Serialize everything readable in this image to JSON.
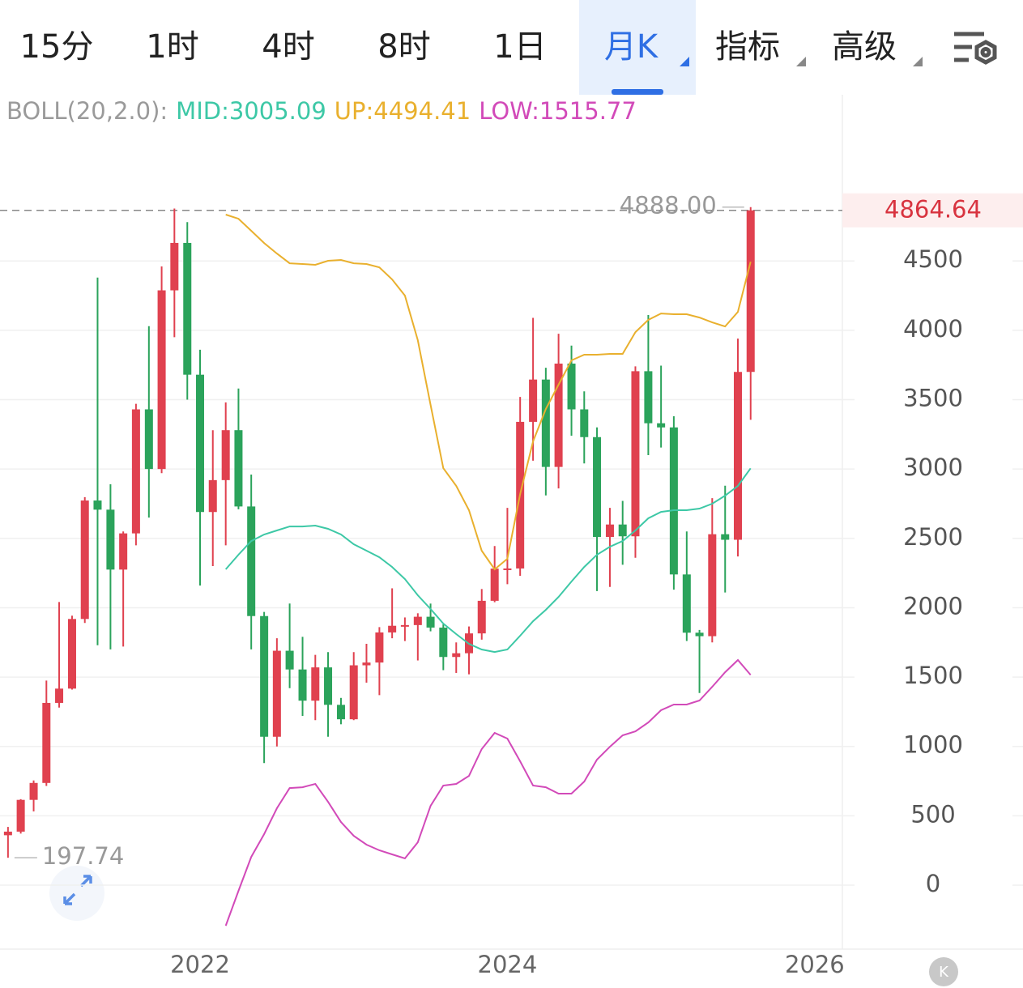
{
  "tabs": {
    "items": [
      "15分",
      "1时",
      "4时",
      "8时",
      "1日",
      "月K",
      "指标",
      "高级"
    ],
    "selected": 5
  },
  "chart_data": {
    "type": "candlestick",
    "indicator_label": "BOLL(20,2.0):",
    "up_color": "#e0414f",
    "down_color": "#2ba35b",
    "x": [
      2020.75,
      2020.833,
      2020.917,
      2021,
      2021.083,
      2021.167,
      2021.25,
      2021.333,
      2021.417,
      2021.5,
      2021.583,
      2021.667,
      2021.75,
      2021.833,
      2021.917,
      2022,
      2022.083,
      2022.167,
      2022.25,
      2022.333,
      2022.417,
      2022.5,
      2022.583,
      2022.667,
      2022.75,
      2022.833,
      2022.917,
      2023,
      2023.083,
      2023.167,
      2023.25,
      2023.333,
      2023.417,
      2023.5,
      2023.583,
      2023.667,
      2023.75,
      2023.833,
      2023.917,
      2024,
      2024.083,
      2024.167,
      2024.25,
      2024.333,
      2024.417,
      2024.5,
      2024.583,
      2024.667,
      2024.75,
      2024.833,
      2024.917,
      2025,
      2025.083,
      2025.167,
      2025.25,
      2025.333,
      2025.417,
      2025.5,
      2025.583
    ],
    "open": [
      360,
      386,
      615,
      737,
      1314,
      1417,
      1919,
      2773,
      2707,
      2275,
      2536,
      3430,
      3000,
      4288,
      4630,
      3680,
      2690,
      2920,
      3280,
      2730,
      1940,
      1070,
      1690,
      1555,
      1330,
      1570,
      1300,
      1196,
      1585,
      1605,
      1822,
      1870,
      1875,
      1935,
      1857,
      1645,
      1672,
      1815,
      2050,
      2282,
      2283,
      3340,
      3645,
      3015,
      3760,
      3430,
      3230,
      2510,
      2600,
      2515,
      3705,
      3330,
      3300,
      2240,
      1820,
      1795,
      2530,
      2490,
      3700
    ],
    "high": [
      420,
      620,
      755,
      1475,
      2041,
      1943,
      2797,
      4380,
      2890,
      2550,
      3470,
      4030,
      4460,
      4878,
      4780,
      3860,
      3280,
      3480,
      3580,
      2960,
      1970,
      1780,
      2030,
      1790,
      1660,
      1680,
      1350,
      1680,
      1740,
      1860,
      2140,
      1930,
      1960,
      2030,
      1880,
      1750,
      1865,
      2135,
      2445,
      2720,
      3520,
      4090,
      3730,
      3975,
      3890,
      3560,
      3300,
      2720,
      2770,
      3740,
      4110,
      3745,
      3380,
      2550,
      1840,
      2790,
      2880,
      3940,
      4888
    ],
    "low": [
      197.74,
      372,
      532,
      715,
      1280,
      1410,
      1890,
      1730,
      1700,
      1720,
      2450,
      2650,
      2970,
      3950,
      3500,
      2160,
      2300,
      2450,
      2710,
      1700,
      880,
      1000,
      1420,
      1220,
      1190,
      1070,
      1160,
      1190,
      1460,
      1370,
      1780,
      1760,
      1620,
      1830,
      1550,
      1530,
      1520,
      1770,
      2040,
      2170,
      2230,
      3060,
      2810,
      2860,
      3240,
      3040,
      2120,
      2150,
      2310,
      2360,
      3100,
      3155,
      2130,
      1760,
      1385,
      1750,
      2110,
      2370,
      3355
    ],
    "close": [
      386,
      615,
      737,
      1314,
      1417,
      1919,
      2773,
      2707,
      2275,
      2536,
      3430,
      3000,
      4288,
      4630,
      3680,
      2690,
      2920,
      3280,
      2730,
      1940,
      1070,
      1690,
      1555,
      1330,
      1570,
      1300,
      1196,
      1585,
      1605,
      1822,
      1870,
      1875,
      1935,
      1857,
      1645,
      1672,
      1815,
      2050,
      2282,
      2283,
      3340,
      3645,
      3015,
      3760,
      3430,
      3230,
      2510,
      2600,
      2515,
      3705,
      3330,
      3300,
      2240,
      1820,
      1795,
      2530,
      2490,
      3700,
      4864.64
    ],
    "series": [
      {
        "name": "MID:3005.09",
        "color": "#3dc8a6",
        "values": [
          null,
          null,
          null,
          null,
          null,
          null,
          null,
          null,
          null,
          null,
          null,
          null,
          null,
          null,
          null,
          null,
          null,
          2277,
          2382,
          2481,
          2528,
          2557,
          2586,
          2586,
          2592,
          2569,
          2528,
          2458,
          2411,
          2364,
          2294,
          2207,
          2090,
          1991,
          1886,
          1810,
          1740,
          1699,
          1681,
          1699,
          1798,
          1903,
          1985,
          2078,
          2189,
          2294,
          2382,
          2440,
          2481,
          2557,
          2645,
          2691,
          2703,
          2703,
          2715,
          2750,
          2808,
          2878,
          3005.09
        ]
      },
      {
        "name": "UP:4494.41",
        "color": "#e9b02e",
        "values": [
          null,
          null,
          null,
          null,
          null,
          null,
          null,
          null,
          null,
          null,
          null,
          null,
          null,
          null,
          null,
          null,
          null,
          4834,
          4804,
          4717,
          4629,
          4553,
          4483,
          4478,
          4472,
          4501,
          4507,
          4483,
          4478,
          4454,
          4367,
          4250,
          3929,
          3462,
          3006,
          2878,
          2703,
          2411,
          2277,
          2353,
          2820,
          3199,
          3433,
          3608,
          3783,
          3824,
          3824,
          3830,
          3830,
          3987,
          4075,
          4121,
          4116,
          4116,
          4092,
          4057,
          4028,
          4133,
          4494.41
        ]
      },
      {
        "name": "LOW:1515.77",
        "color": "#d24ab9",
        "values": [
          null,
          null,
          null,
          null,
          null,
          null,
          null,
          null,
          null,
          null,
          null,
          null,
          null,
          null,
          null,
          null,
          null,
          -292,
          -41,
          204,
          368,
          555,
          700,
          706,
          730,
          601,
          455,
          356,
          292,
          251,
          222,
          193,
          309,
          572,
          718,
          730,
          788,
          981,
          1098,
          1057,
          893,
          718,
          706,
          660,
          660,
          747,
          905,
          998,
          1080,
          1109,
          1173,
          1261,
          1302,
          1302,
          1331,
          1430,
          1535,
          1623,
          1515.77
        ]
      }
    ],
    "ylim": [
      -461,
      5698
    ],
    "yticks": [
      0,
      500,
      1000,
      1500,
      2000,
      2500,
      3000,
      3500,
      4000,
      4500
    ],
    "xlim": [
      2020.698,
      2026.18
    ],
    "xticks": [
      2022,
      2024,
      2026
    ],
    "grid": true,
    "last_price": {
      "value": 4864.64,
      "label": "4864.64"
    },
    "max_marker": {
      "value": 4888,
      "label": "4888.00"
    },
    "min_marker": {
      "value": 197.74,
      "label": "197.74"
    },
    "corner_button": "K"
  }
}
